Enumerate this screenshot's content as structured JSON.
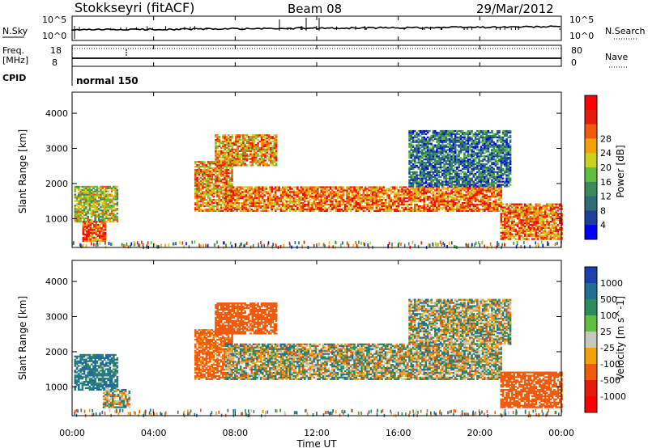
{
  "header": {
    "station": "Stokkseyri (fitACF)",
    "beam": "Beam 08",
    "date": "29/Mar/2012"
  },
  "noise_panel": {
    "left_label": "N.Sky",
    "left_ticks": [
      "10^5",
      "10^0"
    ],
    "right_ticks": [
      "10^5",
      "10^0"
    ],
    "right_label": "N.Search"
  },
  "freq_panel": {
    "left_label_1": "Freq.",
    "left_label_2": "[MHz]",
    "left_ticks": [
      "18",
      "8"
    ],
    "right_ticks": [
      "80",
      "0"
    ],
    "right_label": "Nave"
  },
  "cpid_panel": {
    "label": "CPID",
    "program": "normal 150"
  },
  "axis": {
    "xlabel": "Time UT",
    "xticks": [
      "00:00",
      "04:00",
      "08:00",
      "12:00",
      "16:00",
      "20:00",
      "00:00"
    ],
    "ylabel": "Slant Range [km]",
    "yticks": [
      "1000",
      "2000",
      "3000",
      "4000"
    ]
  },
  "power_scale": {
    "label": "Power [dB]",
    "ticks": [
      "4",
      "8",
      "12",
      "16",
      "20",
      "24",
      "28"
    ],
    "colors": [
      "#0000ff",
      "#1c3f9e",
      "#2e6e76",
      "#3a8a5a",
      "#5fbf3f",
      "#c9d21c",
      "#f5a00a",
      "#f05a0a",
      "#e81a0a",
      "#ff0000"
    ]
  },
  "velocity_scale": {
    "label": "Velocity [m s^-1]",
    "ticks": [
      "1000",
      "500",
      "100",
      "25",
      "-25",
      "-100",
      "-500",
      "-1000"
    ],
    "colors": [
      "#1a3fb0",
      "#1f6e96",
      "#2b8c5c",
      "#5fbf3f",
      "#c8c8c0",
      "#f5a00a",
      "#f05a0a",
      "#e81a0a",
      "#ff0000"
    ]
  },
  "chart_data": [
    {
      "type": "heatmap",
      "title": "",
      "xlabel": "Time UT",
      "ylabel": "Slant Range [km]",
      "xlim": [
        "00:00",
        "24:00"
      ],
      "ylim": [
        180,
        4600
      ],
      "colorbar": {
        "label": "Power [dB]",
        "range": [
          0,
          30
        ]
      },
      "echo_regions": [
        {
          "t_start": 0.1,
          "t_end": 2.2,
          "r_start": 900,
          "r_end": 1900,
          "value": 16
        },
        {
          "t_start": 0.5,
          "t_end": 1.6,
          "r_start": 350,
          "r_end": 900,
          "value": 24
        },
        {
          "t_start": 6.0,
          "t_end": 7.8,
          "r_start": 1200,
          "r_end": 2600,
          "value": 20
        },
        {
          "t_start": 7.0,
          "t_end": 10.0,
          "r_start": 2500,
          "r_end": 3400,
          "value": 20
        },
        {
          "t_start": 7.5,
          "t_end": 21.0,
          "r_start": 1200,
          "r_end": 1900,
          "value": 22
        },
        {
          "t_start": 16.5,
          "t_end": 21.5,
          "r_start": 1900,
          "r_end": 3500,
          "value": 8
        },
        {
          "t_start": 21.0,
          "t_end": 24.0,
          "r_start": 400,
          "r_end": 1400,
          "value": 22
        }
      ]
    },
    {
      "type": "heatmap",
      "title": "",
      "xlabel": "Time UT",
      "ylabel": "Slant Range [km]",
      "xlim": [
        "00:00",
        "24:00"
      ],
      "ylim": [
        180,
        4600
      ],
      "colorbar": {
        "label": "Velocity [m s^-1]",
        "range": [
          -1000,
          1000
        ]
      },
      "echo_regions": [
        {
          "t_start": 0.1,
          "t_end": 2.2,
          "r_start": 900,
          "r_end": 1900,
          "value": 150
        },
        {
          "t_start": 1.5,
          "t_end": 2.8,
          "r_start": 400,
          "r_end": 900,
          "value": 0
        },
        {
          "t_start": 6.0,
          "t_end": 7.8,
          "r_start": 1200,
          "r_end": 2600,
          "value": -200
        },
        {
          "t_start": 7.0,
          "t_end": 10.0,
          "r_start": 2500,
          "r_end": 3400,
          "value": -300
        },
        {
          "t_start": 7.5,
          "t_end": 21.0,
          "r_start": 1200,
          "r_end": 2200,
          "value": 0
        },
        {
          "t_start": 16.5,
          "t_end": 21.5,
          "r_start": 2200,
          "r_end": 3500,
          "value": 0
        },
        {
          "t_start": 21.0,
          "t_end": 24.0,
          "r_start": 400,
          "r_end": 1400,
          "value": -300
        }
      ]
    }
  ]
}
